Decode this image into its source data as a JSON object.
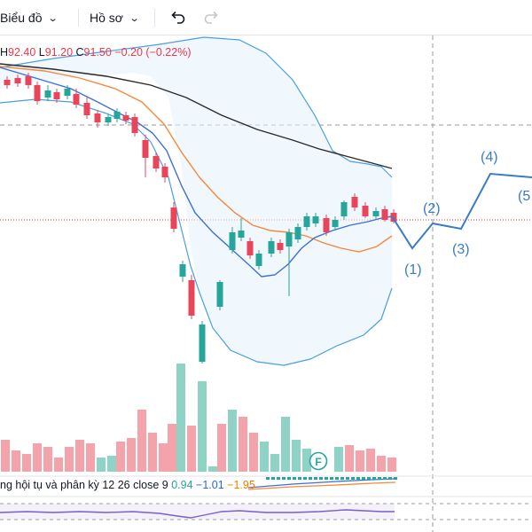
{
  "toolbar": {
    "chart_label": "Biểu đồ",
    "profile_label": "Hồ sơ",
    "undo_icon": "undo-icon",
    "redo_icon": "redo-icon"
  },
  "legend": {
    "h_key": "H",
    "h_val": "92.40",
    "l_key": "L",
    "l_val": "91.20",
    "c_key": "C",
    "c_val": "91.50",
    "change": "−0.20 (−0.22%)"
  },
  "macd": {
    "label": "ng hội tụ và phân kỳ 12 26 close 9",
    "v0": "0.94",
    "v1": "−1.01",
    "v2": "−1.95"
  },
  "markers": {
    "f_badge": "F"
  },
  "wave_labels": [
    "(1)",
    "(2)",
    "(3)",
    "(4)",
    "(5"
  ],
  "colors": {
    "up": "#26a69a",
    "down": "#e8455a",
    "up_volume": "#8fd3c6",
    "down_volume": "#f5a3ab",
    "bollinger": "#4a9fe0",
    "ma_blue": "#3d6fd8",
    "ma_orange": "#f5883a",
    "ma_black": "#2a2a2a",
    "wave": "#3a7bc8",
    "macd_purple": "#7a5ec9"
  }
}
